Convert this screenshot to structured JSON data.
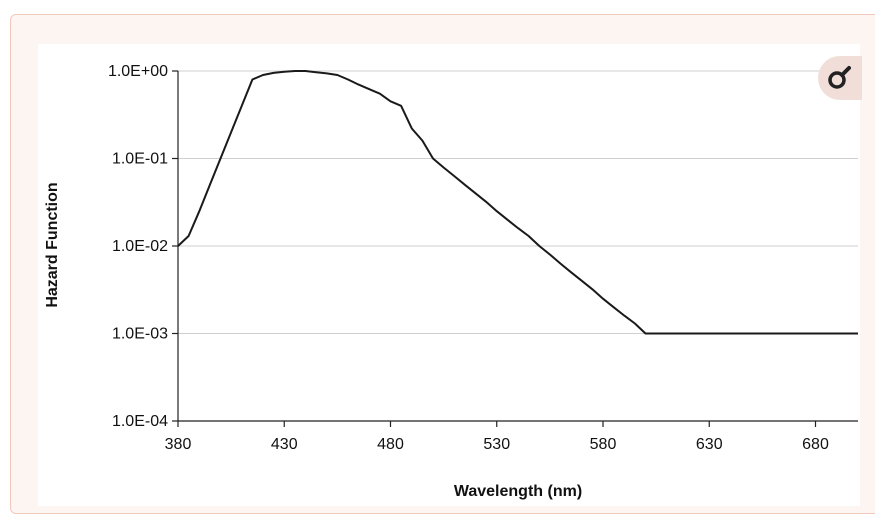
{
  "chart_data": {
    "type": "line",
    "title": "",
    "xlabel": "Wavelength (nm)",
    "ylabel": "Hazard Function",
    "xlim": [
      380,
      700
    ],
    "ylim": [
      0.0001,
      1
    ],
    "yscale": "log",
    "grid": "horizontal",
    "x_ticks": [
      380,
      430,
      480,
      530,
      580,
      630,
      680
    ],
    "x_tick_labels": [
      "380",
      "430",
      "480",
      "530",
      "580",
      "630",
      "680"
    ],
    "y_ticks": [
      1,
      0.1,
      0.01,
      0.001,
      0.0001
    ],
    "y_tick_labels": [
      "1.0E+00",
      "1.0E-01",
      "1.0E-02",
      "1.0E-03",
      "1.0E-04"
    ],
    "series": [
      {
        "name": "",
        "color": "#1a1a1a",
        "x": [
          380,
          385,
          390,
          395,
          400,
          405,
          410,
          415,
          420,
          425,
          430,
          435,
          440,
          445,
          450,
          455,
          460,
          465,
          470,
          475,
          480,
          485,
          490,
          495,
          500,
          505,
          510,
          515,
          520,
          525,
          530,
          535,
          540,
          545,
          550,
          555,
          560,
          565,
          570,
          575,
          580,
          585,
          590,
          595,
          600,
          650,
          700
        ],
        "y": [
          0.01,
          0.013,
          0.025,
          0.05,
          0.1,
          0.2,
          0.4,
          0.8,
          0.9,
          0.95,
          0.98,
          1.0,
          1.0,
          0.97,
          0.94,
          0.9,
          0.8,
          0.7,
          0.62,
          0.55,
          0.45,
          0.4,
          0.22,
          0.16,
          0.1,
          0.079,
          0.063,
          0.05,
          0.04,
          0.032,
          0.025,
          0.02,
          0.016,
          0.013,
          0.01,
          0.008,
          0.0063,
          0.005,
          0.004,
          0.0032,
          0.0025,
          0.002,
          0.0016,
          0.0013,
          0.001,
          0.001,
          0.001
        ]
      }
    ]
  },
  "controls": {
    "zoom_icon": "magnify-icon"
  }
}
